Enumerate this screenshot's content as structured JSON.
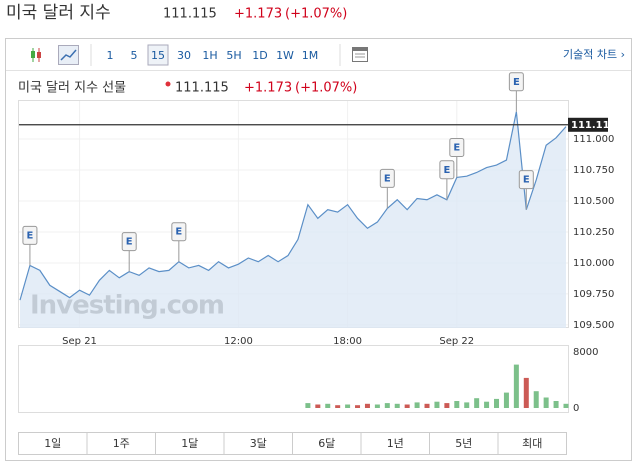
{
  "header": {
    "title": "미국 달러 지수",
    "price": 111.115,
    "change": "+1.173",
    "change_pct": "(+1.07%)"
  },
  "toolbar": {
    "intervals": [
      "1",
      "5",
      "15",
      "30",
      "1H",
      "5H",
      "1D",
      "1W",
      "1M"
    ],
    "selected": "15",
    "tech_chart": "기술적 차트 ›"
  },
  "chart_data": {
    "type": "line",
    "title": "미국 달러 지수 선물",
    "price": 111.115,
    "change": "+1.173",
    "change_pct": "(+1.07%)",
    "watermark": "Investing.com",
    "color": "#5b8fc7",
    "fill": "#dde9f5",
    "grid": true,
    "categories": [
      null,
      null,
      null,
      null,
      null,
      null,
      "Sep 21",
      null,
      null,
      null,
      null,
      null,
      null,
      null,
      null,
      null,
      null,
      null,
      null,
      null,
      null,
      null,
      "12:00",
      null,
      null,
      null,
      null,
      null,
      null,
      null,
      null,
      null,
      null,
      "18:00",
      null,
      null,
      null,
      null,
      null,
      null,
      null,
      null,
      null,
      null,
      "Sep 22",
      null,
      null,
      null,
      null,
      null,
      null,
      null,
      null,
      null,
      null,
      null
    ],
    "values": [
      109.7,
      109.98,
      109.94,
      109.82,
      109.77,
      109.72,
      109.78,
      109.74,
      109.86,
      109.94,
      109.88,
      109.93,
      109.9,
      109.96,
      109.93,
      109.94,
      110.01,
      109.96,
      109.98,
      109.94,
      110.01,
      109.96,
      109.99,
      110.04,
      110.01,
      110.06,
      110.01,
      110.06,
      110.19,
      110.47,
      110.36,
      110.43,
      110.41,
      110.47,
      110.36,
      110.28,
      110.33,
      110.44,
      110.51,
      110.43,
      110.52,
      110.51,
      110.55,
      110.51,
      110.69,
      110.7,
      110.73,
      110.77,
      110.79,
      110.83,
      111.22,
      110.43,
      110.67,
      110.95,
      111.01,
      111.1
    ],
    "events": [
      null,
      "E",
      null,
      null,
      null,
      null,
      null,
      null,
      null,
      null,
      null,
      "E",
      null,
      null,
      null,
      null,
      "E",
      null,
      null,
      null,
      null,
      null,
      null,
      null,
      null,
      null,
      null,
      null,
      null,
      null,
      null,
      null,
      null,
      null,
      null,
      null,
      null,
      "E",
      null,
      null,
      null,
      null,
      null,
      "E",
      "E",
      null,
      null,
      null,
      null,
      null,
      "E",
      "E",
      null,
      null,
      null,
      null
    ],
    "ylim": [
      109.475,
      111.315
    ],
    "yticks": [
      {
        "value": 109.5,
        "label": "109.500"
      },
      {
        "value": 109.75,
        "label": "109.750"
      },
      {
        "value": 110,
        "label": "110.000"
      },
      {
        "value": 110.25,
        "label": "110.250"
      },
      {
        "value": 110.5,
        "label": "110.500"
      },
      {
        "value": 110.75,
        "label": "110.750"
      },
      {
        "value": 111,
        "label": "111.000"
      }
    ],
    "volume": {
      "type": "bar",
      "up_color": "#7cc08a",
      "down_color": "#cc5a55",
      "ylim": [
        0,
        9000
      ],
      "yticks": [
        0,
        8000
      ],
      "values": [
        null,
        null,
        null,
        null,
        null,
        null,
        null,
        null,
        null,
        null,
        null,
        null,
        null,
        null,
        null,
        null,
        null,
        null,
        null,
        null,
        null,
        null,
        null,
        null,
        null,
        null,
        null,
        null,
        null,
        700,
        500,
        600,
        400,
        500,
        400,
        600,
        500,
        700,
        600,
        500,
        800,
        600,
        900,
        700,
        1000,
        800,
        1400,
        900,
        1300,
        2200,
        6200,
        4300,
        2400,
        1500,
        1000,
        600
      ]
    }
  },
  "ranges": [
    "1일",
    "1주",
    "1달",
    "3달",
    "6달",
    "1년",
    "5년",
    "최대"
  ]
}
